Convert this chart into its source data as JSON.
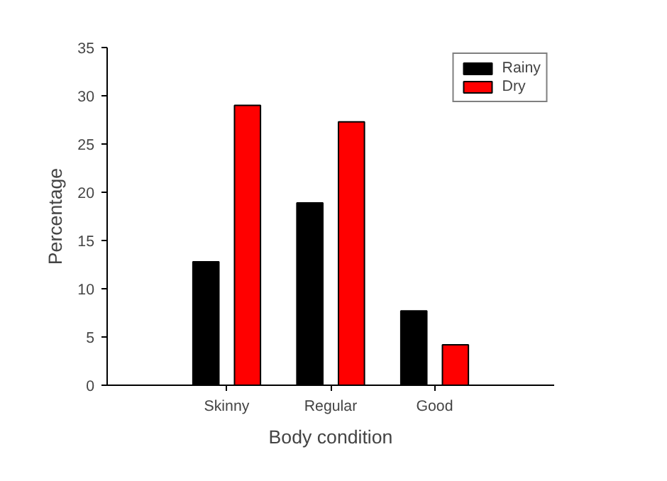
{
  "chart_data": {
    "type": "bar",
    "xlabel": "Body condition",
    "ylabel": "Percentage",
    "categories": [
      "Skinny",
      "Regular",
      "Good"
    ],
    "series": [
      {
        "name": "Rainy",
        "color": "#000000",
        "values": [
          12.8,
          18.9,
          7.7
        ]
      },
      {
        "name": "Dry",
        "color": "#ff0000",
        "values": [
          29.0,
          27.3,
          4.2
        ]
      }
    ],
    "ylim": [
      0,
      35
    ],
    "yticks": [
      0,
      5,
      10,
      15,
      20,
      25,
      30,
      35
    ],
    "grid": false,
    "legend": "top right"
  }
}
